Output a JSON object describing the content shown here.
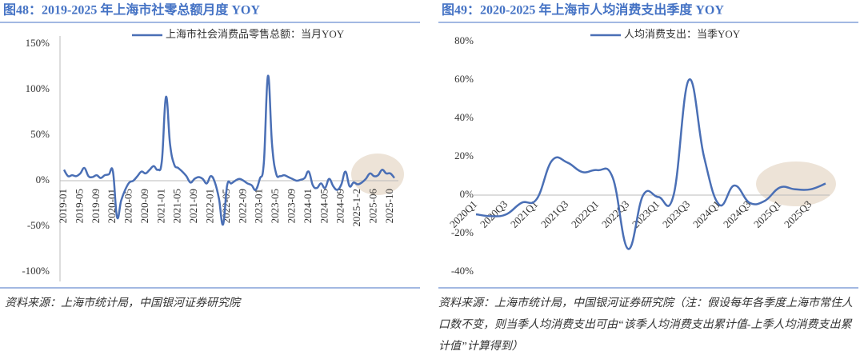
{
  "chart_data": [
    {
      "type": "line",
      "title": "图48：2019-2025 年上海市社零总额月度 YOY",
      "categories": [
        "2019-01",
        null,
        null,
        null,
        "2019-05",
        null,
        null,
        null,
        "2019-09",
        null,
        null,
        null,
        "2020-01",
        null,
        null,
        null,
        "2020-05",
        null,
        null,
        null,
        "2020-09",
        null,
        null,
        null,
        "2021-01",
        null,
        null,
        null,
        "2021-05",
        null,
        null,
        null,
        "2021-09",
        null,
        null,
        null,
        "2022-01",
        null,
        null,
        null,
        "2022-05",
        null,
        null,
        null,
        "2022-09",
        null,
        null,
        null,
        "2023-01",
        null,
        null,
        null,
        "2023-05",
        null,
        null,
        null,
        "2023-09",
        null,
        null,
        null,
        "2024-01",
        null,
        null,
        null,
        "2024-05",
        null,
        null,
        null,
        "2024-09",
        null,
        null,
        null,
        "2025-1-2",
        null,
        null,
        null,
        "2025-06",
        null,
        null,
        null,
        "2025-10",
        null
      ],
      "series": [
        {
          "name": "上海市社会消费品零售总额：当月YOY",
          "color": "#4a6fb5",
          "values": [
            12,
            5,
            6,
            5,
            8,
            14,
            5,
            4,
            6,
            3,
            6,
            7,
            10,
            -40,
            -22,
            -10,
            -2,
            0,
            5,
            10,
            8,
            12,
            16,
            12,
            22,
            92,
            40,
            18,
            14,
            10,
            5,
            -2,
            2,
            4,
            2,
            -3,
            5,
            -2,
            -20,
            -48,
            -5,
            -3,
            0,
            2,
            0,
            -3,
            -5,
            -10,
            2,
            20,
            115,
            40,
            8,
            5,
            6,
            4,
            2,
            0,
            1,
            3,
            10,
            -5,
            -8,
            -3,
            -8,
            2,
            -6,
            -10,
            -4,
            10,
            -6,
            -2,
            -4,
            -2,
            2,
            8,
            5,
            6,
            12,
            8,
            8,
            3
          ]
        }
      ],
      "ylim": [
        -100,
        150
      ],
      "yticks": [
        {
          "value": -100,
          "label": "-100%"
        },
        {
          "value": -50,
          "label": "-50%"
        },
        {
          "value": 0,
          "label": "0%"
        },
        {
          "value": 50,
          "label": "50%"
        },
        {
          "value": 100,
          "label": "100%"
        },
        {
          "value": 150,
          "label": "150%"
        }
      ],
      "grid": false,
      "legend": "top",
      "source": "资料来源：上海市统计局，中国银河证券研究院"
    },
    {
      "type": "line",
      "title": "图49：2020-2025 年上海市人均消费支出季度 YOY",
      "categories": [
        "2020Q1",
        null,
        "2020Q3",
        null,
        "2021Q1",
        null,
        "2021Q3",
        null,
        "2022Q1",
        null,
        "2022Q3",
        null,
        "2023Q1",
        null,
        "2023Q3",
        null,
        "2024Q1",
        null,
        "2024Q3",
        null,
        "2025Q1",
        null,
        "2025Q3",
        null
      ],
      "series": [
        {
          "name": "人均消费支出：当季YOY",
          "color": "#4a6fb5",
          "values": [
            -10,
            -11,
            -10,
            -4,
            -2,
            18,
            17,
            12,
            13,
            9,
            -28,
            0,
            -1,
            0,
            60,
            20,
            -5,
            5,
            -4,
            -3,
            4,
            3,
            3,
            6
          ]
        }
      ],
      "ylim": [
        -40,
        80
      ],
      "yticks": [
        {
          "value": -40,
          "label": "-40%"
        },
        {
          "value": -20,
          "label": "-20%"
        },
        {
          "value": 0,
          "label": "0%"
        },
        {
          "value": 20,
          "label": "20%"
        },
        {
          "value": 40,
          "label": "40%"
        },
        {
          "value": 60,
          "label": "60%"
        },
        {
          "value": 80,
          "label": "80%"
        }
      ],
      "grid": false,
      "legend": "top",
      "source": "资料来源：上海市统计局，中国银河证券研究院（注：假设每年各季度上海市常住人口数不变，则当季人均消费支出可由“该季人均消费支出累计值-上季人均消费支出累计值”计算得到）"
    }
  ]
}
